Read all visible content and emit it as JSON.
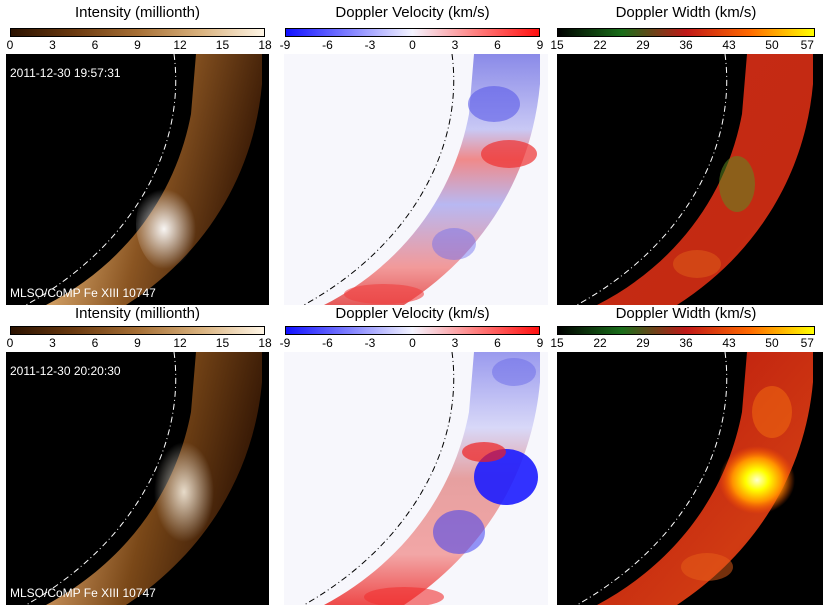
{
  "rows": [
    {
      "timestamp": "2011-12-30 19:57:31",
      "instrument": "MLSO/CoMP Fe XIII 10747",
      "colorbars": [
        {
          "title": "Intensity (millionth)",
          "ticks": [
            "0",
            "3",
            "6",
            "9",
            "12",
            "15",
            "18"
          ],
          "cmap": "copper"
        },
        {
          "title": "Doppler Velocity (km/s)",
          "ticks": [
            "-9",
            "-6",
            "-3",
            "0",
            "3",
            "6",
            "9"
          ],
          "cmap": "bwr"
        },
        {
          "title": "Doppler Width (km/s)",
          "ticks": [
            "15",
            "22",
            "29",
            "36",
            "43",
            "50",
            "57"
          ],
          "cmap": "width"
        }
      ]
    },
    {
      "timestamp": "2011-12-30 20:20:30",
      "instrument": "MLSO/CoMP Fe XIII 10747",
      "colorbars": [
        {
          "title": "Intensity (millionth)",
          "ticks": [
            "0",
            "3",
            "6",
            "9",
            "12",
            "15",
            "18"
          ],
          "cmap": "copper"
        },
        {
          "title": "Doppler Velocity (km/s)",
          "ticks": [
            "-9",
            "-6",
            "-3",
            "0",
            "3",
            "6",
            "9"
          ],
          "cmap": "bwr"
        },
        {
          "title": "Doppler Width (km/s)",
          "ticks": [
            "15",
            "22",
            "29",
            "36",
            "43",
            "50",
            "57"
          ],
          "cmap": "width"
        }
      ]
    }
  ],
  "colors": {
    "copper": [
      "#2b1200",
      "#6b3a10",
      "#a66f35",
      "#d9b27e",
      "#fff6e6"
    ],
    "bwr": [
      "#1010ff",
      "#8080ff",
      "#f4f4ff",
      "#ff8080",
      "#ff1010"
    ],
    "width": [
      "#000000",
      "#1a6e1a",
      "#c01818",
      "#ff6a00",
      "#ffff00"
    ]
  }
}
